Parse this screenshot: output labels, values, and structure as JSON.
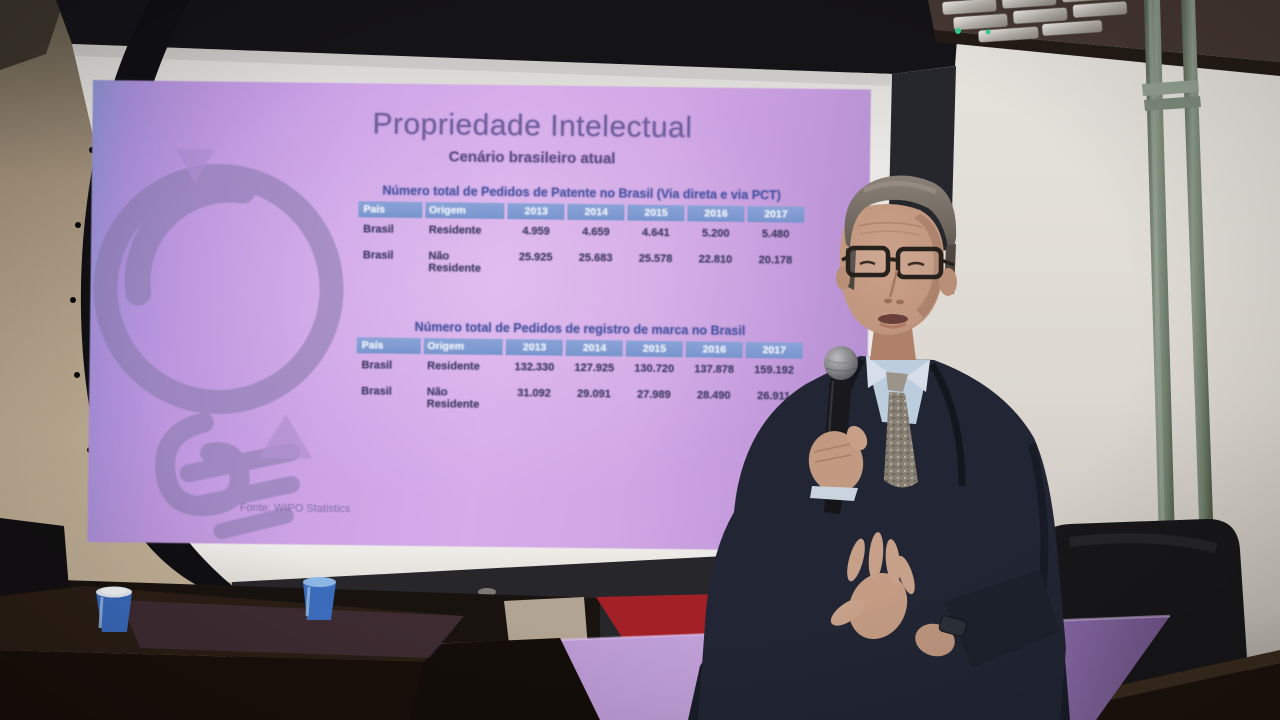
{
  "slide": {
    "title": "Propriedade Intelectual",
    "subtitle": "Cenário brasileiro atual",
    "source": "Fonte: WIPO Statistics",
    "tables": [
      {
        "caption": "Número total de Pedidos de Patente no Brasil (Via direta e via PCT)",
        "headers": [
          "País",
          "Origem",
          "2013",
          "2014",
          "2015",
          "2016",
          "2017"
        ],
        "rows": [
          [
            "Brasil",
            "Residente",
            "4.959",
            "4.659",
            "4.641",
            "5.200",
            "5.480"
          ],
          [
            "Brasil",
            "Não Residente",
            "25.925",
            "25.683",
            "25.578",
            "22.810",
            "20.178"
          ]
        ]
      },
      {
        "caption": "Número total de Pedidos de registro de marca no Brasil",
        "headers": [
          "País",
          "Origem",
          "2013",
          "2014",
          "2015",
          "2016",
          "2017"
        ],
        "rows": [
          [
            "Brasil",
            "Residente",
            "132.330",
            "127.925",
            "130.720",
            "137.878",
            "159.192"
          ],
          [
            "Brasil",
            "Não Residente",
            "31.092",
            "29.091",
            "27.989",
            "28.490",
            "26.911"
          ]
        ]
      }
    ]
  },
  "palette": {
    "slide_purple": "#cda3e6",
    "slide_edge_blue": "#8d92d2",
    "table_header_blue": "#7e99d0",
    "slide_title_text": "#6f5f9d",
    "table_caption_text": "#4b55a3",
    "bulb_graphic": "#8479a8",
    "screen_white": "#ece9e5",
    "left_wall_tan": "#bcab92",
    "right_wall_gray": "#dcd8d1",
    "ceiling_brown": "#453731",
    "pole_green_gray": "#6c7a68",
    "suit_navy": "#222634",
    "shirt_blue": "#bccede",
    "tie_gray": "#867f74",
    "skin": "#c29a82",
    "chair_black": "#17171a",
    "table_dark_brown": "#1c130c",
    "table_lit_purple": "#bd9bd6",
    "cup_blue": "#3b70c6",
    "red_chair": "#a32027"
  }
}
